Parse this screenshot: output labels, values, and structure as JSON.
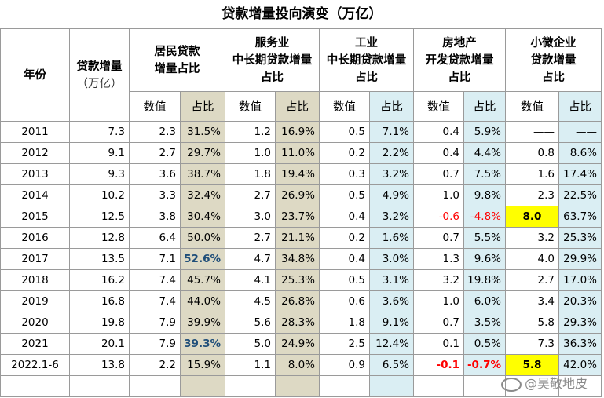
{
  "title": "贷款增量投向演变（万亿）",
  "headers": {
    "year": "年份",
    "loan_line1": "贷款增量",
    "loan_line2": "（万亿）",
    "resident_line1": "居民贷款",
    "resident_line2": "增量占比",
    "service_line1": "服务业",
    "service_line2": "中长期贷款增量",
    "service_line3": "占比",
    "industry_line1": "工业",
    "industry_line2": "中长期贷款增量",
    "industry_line3": "占比",
    "realestate_line1": "房地产",
    "realestate_line2": "开发贷款增量",
    "realestate_line3": "占比",
    "micro_line1": "小微企业",
    "micro_line2": "贷款增量",
    "micro_line3": "占比"
  },
  "subheaders": {
    "value": "数值",
    "ratio": "占比"
  },
  "rows": [
    {
      "year": "2011",
      "total": "7.3",
      "res_v": "2.3",
      "res_p": "31.5%",
      "svc_v": "1.2",
      "svc_p": "16.9%",
      "ind_v": "0.5",
      "ind_p": "7.1%",
      "re_v": "0.4",
      "re_p": "5.9%",
      "mic_v": "——",
      "mic_p": "——"
    },
    {
      "year": "2012",
      "total": "9.1",
      "res_v": "2.7",
      "res_p": "29.7%",
      "svc_v": "1.0",
      "svc_p": "11.0%",
      "ind_v": "0.2",
      "ind_p": "2.2%",
      "re_v": "0.4",
      "re_p": "4.4%",
      "mic_v": "0.8",
      "mic_p": "8.6%"
    },
    {
      "year": "2013",
      "total": "9.3",
      "res_v": "3.6",
      "res_p": "38.7%",
      "svc_v": "1.8",
      "svc_p": "19.4%",
      "ind_v": "0.3",
      "ind_p": "3.2%",
      "re_v": "0.7",
      "re_p": "7.5%",
      "mic_v": "1.6",
      "mic_p": "17.4%"
    },
    {
      "year": "2014",
      "total": "10.2",
      "res_v": "3.3",
      "res_p": "32.4%",
      "svc_v": "2.7",
      "svc_p": "26.9%",
      "ind_v": "0.5",
      "ind_p": "4.9%",
      "re_v": "1.0",
      "re_p": "9.8%",
      "mic_v": "2.3",
      "mic_p": "22.5%"
    },
    {
      "year": "2015",
      "total": "12.5",
      "res_v": "3.8",
      "res_p": "30.4%",
      "svc_v": "3.0",
      "svc_p": "23.7%",
      "ind_v": "0.4",
      "ind_p": "3.2%",
      "re_v": "-0.6",
      "re_p": "-4.8%",
      "mic_v": "8.0",
      "mic_p": "63.7%"
    },
    {
      "year": "2016",
      "total": "12.8",
      "res_v": "6.4",
      "res_p": "50.0%",
      "svc_v": "2.7",
      "svc_p": "21.1%",
      "ind_v": "0.2",
      "ind_p": "1.6%",
      "re_v": "0.7",
      "re_p": "5.5%",
      "mic_v": "3.2",
      "mic_p": "25.3%"
    },
    {
      "year": "2017",
      "total": "13.5",
      "res_v": "7.1",
      "res_p": "52.6%",
      "svc_v": "4.7",
      "svc_p": "34.8%",
      "ind_v": "0.4",
      "ind_p": "3.0%",
      "re_v": "1.3",
      "re_p": "9.6%",
      "mic_v": "4.0",
      "mic_p": "29.9%"
    },
    {
      "year": "2018",
      "total": "16.2",
      "res_v": "7.4",
      "res_p": "45.7%",
      "svc_v": "4.1",
      "svc_p": "25.3%",
      "ind_v": "0.5",
      "ind_p": "3.1%",
      "re_v": "3.2",
      "re_p": "19.8%",
      "mic_v": "2.7",
      "mic_p": "17.0%"
    },
    {
      "year": "2019",
      "total": "16.8",
      "res_v": "7.4",
      "res_p": "44.0%",
      "svc_v": "4.5",
      "svc_p": "26.8%",
      "ind_v": "0.6",
      "ind_p": "3.6%",
      "re_v": "1.0",
      "re_p": "6.0%",
      "mic_v": "3.4",
      "mic_p": "20.3%"
    },
    {
      "year": "2020",
      "total": "19.8",
      "res_v": "7.9",
      "res_p": "39.9%",
      "svc_v": "5.6",
      "svc_p": "28.3%",
      "ind_v": "1.8",
      "ind_p": "9.1%",
      "re_v": "0.7",
      "re_p": "3.5%",
      "mic_v": "5.8",
      "mic_p": "29.3%"
    },
    {
      "year": "2021",
      "total": "20.1",
      "res_v": "7.9",
      "res_p": "39.3%",
      "svc_v": "5.0",
      "svc_p": "24.9%",
      "ind_v": "2.5",
      "ind_p": "12.4%",
      "re_v": "0.1",
      "re_p": "0.5%",
      "mic_v": "7.3",
      "mic_p": "36.3%"
    },
    {
      "year": "2022.1-6",
      "total": "13.8",
      "res_v": "2.2",
      "res_p": "15.9%",
      "svc_v": "1.1",
      "svc_p": "8.0%",
      "ind_v": "0.9",
      "ind_p": "6.5%",
      "re_v": "-0.1",
      "re_p": "-0.7%",
      "mic_v": "5.8",
      "mic_p": "42.0%"
    }
  ],
  "highlights": {
    "red_text": [
      "2015.re_v",
      "2015.re_p",
      "2022.1-6.re_v",
      "2022.1-6.re_p"
    ],
    "yellow_fill": [
      "2015.mic_v",
      "2022.1-6.mic_v"
    ],
    "blue_bold": [
      "2017.res_p",
      "2021.res_p"
    ]
  },
  "colors": {
    "tan_fill": "#ddd9c4",
    "blue_fill": "#daeef3",
    "yellow_fill": "#ffff00",
    "negative_red": "#ff0000",
    "highlight_blue": "#1f4e79"
  },
  "watermark": "@吴敬地皮"
}
